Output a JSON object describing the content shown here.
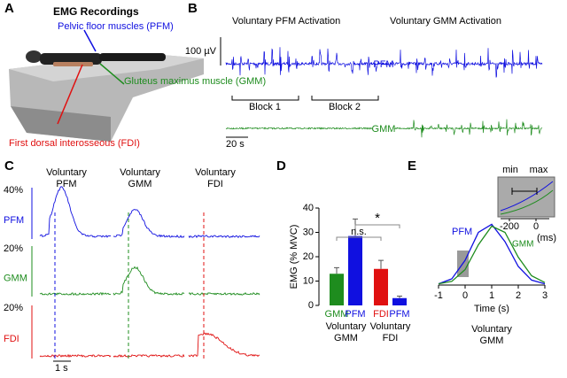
{
  "panel_labels": [
    "A",
    "B",
    "C",
    "D",
    "E"
  ],
  "panel_a": {
    "title": "EMG Recordings",
    "labels": [
      "Pelvic floor muscles (PFM)",
      "Gluteus maximus muscle (GMM)",
      "First dorsal interosseous (FDI)"
    ]
  },
  "panel_b": {
    "titles": [
      "Voluntary PFM Activation",
      "Voluntary GMM Activation"
    ],
    "scale_y": "100 µV",
    "scale_x": "20 s",
    "channels": [
      "PFM",
      "GMM"
    ],
    "blocks": [
      "Block 1",
      "Block 2"
    ]
  },
  "panel_c": {
    "columns": [
      [
        "Voluntary",
        "PFM"
      ],
      [
        "Voluntary",
        "GMM"
      ],
      [
        "Voluntary",
        "FDI"
      ]
    ],
    "rows": [
      "PFM",
      "GMM",
      "FDI"
    ],
    "scales": [
      "40%",
      "20%",
      "20%"
    ],
    "time_scale": "1 s"
  },
  "chart_data": [
    {
      "type": "bar",
      "ylabel": "EMG (% MVC)",
      "categories": [
        "GMM",
        "PFM",
        "FDI",
        "PFM"
      ],
      "values": [
        13,
        28.5,
        15,
        3
      ],
      "errors": [
        2.5,
        7,
        3.5,
        0.8
      ],
      "colors": [
        "#1e8c1e",
        "#1010e0",
        "#e01010",
        "#1010e0"
      ],
      "groups": [
        [
          "Voluntary",
          "GMM"
        ],
        [
          "Voluntary",
          "FDI"
        ]
      ],
      "annotations": [
        "n.s.",
        "*"
      ],
      "ylim": [
        0,
        40
      ],
      "yticks": [
        0,
        10,
        20,
        30,
        40
      ]
    },
    {
      "type": "line",
      "xlabel": "Time (s)",
      "caption": [
        "Voluntary",
        "GMM"
      ],
      "x": [
        -1,
        -0.5,
        0,
        0.5,
        1,
        1.5,
        2,
        2.5,
        3
      ],
      "series": [
        {
          "name": "PFM",
          "color": "#1010e0",
          "values": [
            0.02,
            0.1,
            0.4,
            0.85,
            0.98,
            0.7,
            0.3,
            0.08,
            0.02
          ]
        },
        {
          "name": "GMM",
          "color": "#1e8c1e",
          "values": [
            0.02,
            0.06,
            0.25,
            0.65,
            0.95,
            0.85,
            0.45,
            0.15,
            0.04
          ]
        }
      ],
      "xlim": [
        -1,
        3
      ],
      "xticks": [
        -1,
        0,
        1,
        2,
        3
      ],
      "ylim": [
        0,
        1.1
      ],
      "inset": {
        "xticks": [
          -200,
          0
        ],
        "unit": "(ms)",
        "labels": [
          "min",
          "max"
        ]
      }
    }
  ]
}
